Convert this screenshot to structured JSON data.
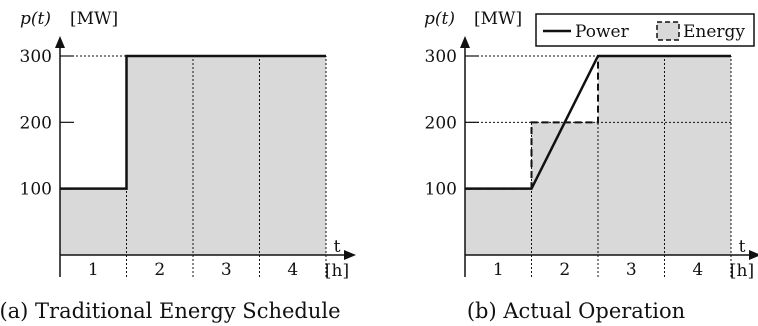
{
  "chart_data": [
    {
      "type": "area",
      "caption": "(a) Traditional Energy Schedule",
      "ylabel_html_parts": {
        "p": "p(t)",
        "unit": "[MW]"
      },
      "xlabel": {
        "t": "t",
        "unit": "[h]"
      },
      "y_ticks": [
        "100",
        "200",
        "300"
      ],
      "x_intervals": [
        "1",
        "2",
        "3",
        "4"
      ],
      "ylim": [
        0,
        330
      ],
      "xlim": [
        0,
        4.5
      ],
      "energy_blocks": [
        {
          "x0": 0,
          "x1": 1,
          "value": 100
        },
        {
          "x0": 1,
          "x1": 2,
          "value": 300
        },
        {
          "x0": 2,
          "x1": 3,
          "value": 300
        },
        {
          "x0": 3,
          "x1": 4,
          "value": 300
        }
      ],
      "power_line": [
        [
          0,
          100
        ],
        [
          1,
          100
        ],
        [
          1,
          300
        ],
        [
          4,
          300
        ]
      ],
      "reference_lines": [
        300
      ]
    },
    {
      "type": "area",
      "caption": "(b) Actual Operation",
      "ylabel_html_parts": {
        "p": "p(t)",
        "unit": "[MW]"
      },
      "xlabel": {
        "t": "t",
        "unit": "[h]"
      },
      "y_ticks": [
        "100",
        "200",
        "300"
      ],
      "x_intervals": [
        "1",
        "2",
        "3",
        "4"
      ],
      "ylim": [
        0,
        330
      ],
      "xlim": [
        0,
        4.5
      ],
      "legend": {
        "power": "Power",
        "energy": "Energy",
        "position": "top-right"
      },
      "energy_blocks": [
        {
          "x0": 0,
          "x1": 1,
          "value": 100
        },
        {
          "x0": 1,
          "x1": 2,
          "value": 200
        },
        {
          "x0": 2,
          "x1": 3,
          "value": 300
        },
        {
          "x0": 3,
          "x1": 4,
          "value": 300
        }
      ],
      "power_line": [
        [
          0,
          100
        ],
        [
          1,
          100
        ],
        [
          2,
          300
        ],
        [
          4,
          300
        ]
      ],
      "reference_lines": [
        200,
        300
      ]
    }
  ]
}
